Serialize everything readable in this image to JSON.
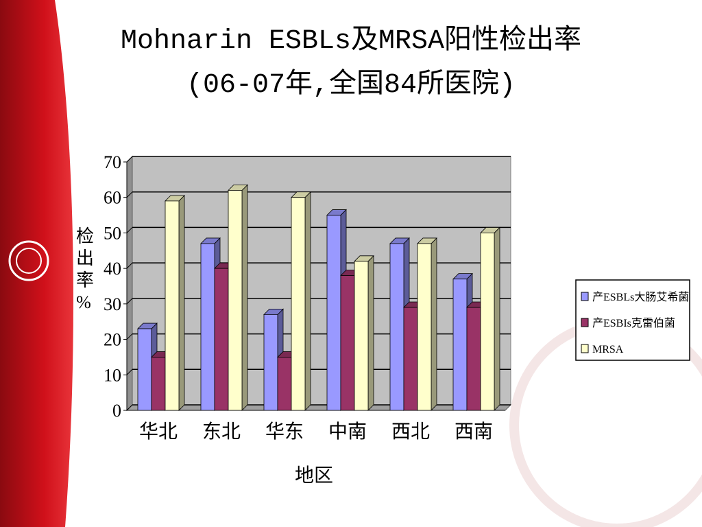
{
  "chart_data": {
    "type": "bar3d",
    "title": "Mohnarin ESBLs及MRSA阳性检出率",
    "subtitle": "(06-07年,全国84所医院)",
    "y_label": "检出率%",
    "x_label": "地区",
    "categories": [
      "华北",
      "东北",
      "华东",
      "中南",
      "西北",
      "西南"
    ],
    "series": [
      {
        "name": "产ESBLs大肠艾希菌",
        "color": "#9999ff",
        "values": [
          23,
          47,
          27,
          55,
          47,
          37
        ]
      },
      {
        "name": "产ESBIs克雷伯菌",
        "color": "#993366",
        "values": [
          15,
          40,
          15,
          38,
          29,
          29
        ]
      },
      {
        "name": "MRSA",
        "color": "#ffffcc",
        "values": [
          59,
          62,
          60,
          42,
          47,
          50
        ]
      }
    ],
    "ylim": [
      0,
      70
    ],
    "yticks": [
      0,
      10,
      20,
      30,
      40,
      50,
      60,
      70
    ],
    "grid": true,
    "legend": "right"
  }
}
